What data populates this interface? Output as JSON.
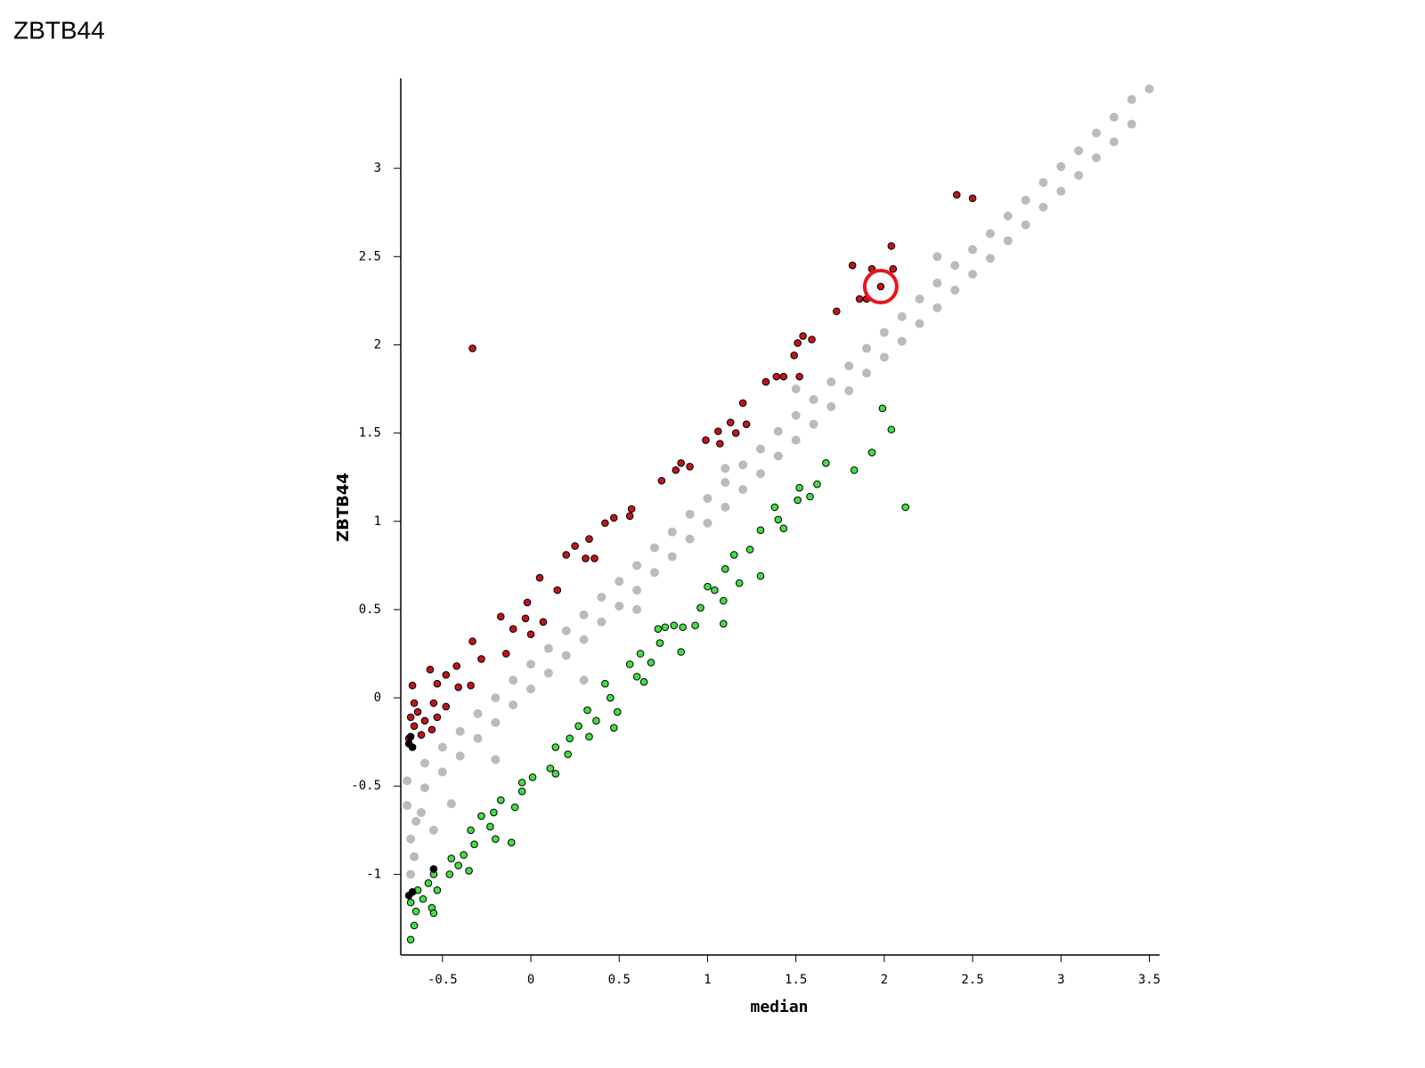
{
  "chart_data": {
    "type": "scatter",
    "title": "ZBTB44",
    "xlabel": "median",
    "ylabel": "ZBTB44",
    "xlim": [
      -0.736,
      3.558
    ],
    "ylim": [
      -1.457,
      3.51
    ],
    "xticks": [
      -0.5,
      0,
      0.5,
      1,
      1.5,
      2,
      2.5,
      3,
      3.5
    ],
    "yticks": [
      -1,
      -0.5,
      0,
      0.5,
      1,
      1.5,
      2,
      2.5,
      3
    ],
    "series": [
      {
        "color": "#bbbbbb",
        "edgecolor": "none",
        "x": [
          -0.7,
          -0.7,
          -0.6,
          -0.6,
          -0.5,
          -0.5,
          -0.4,
          -0.4,
          -0.3,
          -0.3,
          -0.2,
          -0.2,
          -0.1,
          -0.1,
          0,
          0,
          0.1,
          0.1,
          0.2,
          0.2,
          0.3,
          0.3,
          0.4,
          0.4,
          0.5,
          0.5,
          0.6,
          0.6,
          0.7,
          0.7,
          0.8,
          0.8,
          0.9,
          0.9,
          1.0,
          1.0,
          1.1,
          1.1,
          1.2,
          1.2,
          1.3,
          1.3,
          1.4,
          1.4,
          1.5,
          1.5,
          1.6,
          1.6,
          1.7,
          1.7,
          1.8,
          1.8,
          1.9,
          1.9,
          2.0,
          2.0,
          2.1,
          2.1,
          2.2,
          2.2,
          2.3,
          2.3,
          2.4,
          2.4,
          2.5,
          2.5,
          2.6,
          2.6,
          2.7,
          2.7,
          2.8,
          2.8,
          2.9,
          2.9,
          3.0,
          3.0,
          3.1,
          3.1,
          3.2,
          3.2,
          3.3,
          3.3,
          3.4,
          3.4,
          3.5,
          -0.68,
          -0.68,
          -0.66,
          -0.65,
          -0.62,
          -0.55,
          -0.45,
          -0.2,
          0.3,
          0.6,
          1.1,
          1.5,
          2.3
        ],
        "y": [
          -0.47,
          -0.61,
          -0.37,
          -0.51,
          -0.28,
          -0.42,
          -0.19,
          -0.33,
          -0.09,
          -0.23,
          0.0,
          -0.14,
          0.1,
          -0.04,
          0.19,
          0.05,
          0.28,
          0.14,
          0.38,
          0.24,
          0.47,
          0.33,
          0.57,
          0.43,
          0.66,
          0.52,
          0.75,
          0.61,
          0.85,
          0.71,
          0.94,
          0.8,
          1.04,
          0.9,
          1.13,
          0.99,
          1.22,
          1.08,
          1.32,
          1.18,
          1.41,
          1.27,
          1.51,
          1.37,
          1.6,
          1.46,
          1.69,
          1.55,
          1.79,
          1.65,
          1.88,
          1.74,
          1.98,
          1.84,
          2.07,
          1.93,
          2.16,
          2.02,
          2.26,
          2.12,
          2.35,
          2.21,
          2.45,
          2.31,
          2.54,
          2.4,
          2.63,
          2.49,
          2.73,
          2.59,
          2.82,
          2.68,
          2.92,
          2.78,
          3.01,
          2.87,
          3.1,
          2.96,
          3.2,
          3.06,
          3.29,
          3.15,
          3.39,
          3.25,
          3.45,
          -0.8,
          -1.0,
          -0.9,
          -0.7,
          -0.65,
          -0.75,
          -0.6,
          -0.35,
          0.1,
          0.5,
          1.3,
          1.75,
          2.5
        ]
      },
      {
        "color": "#c0141c",
        "edgecolor": "#000000",
        "x": [
          2.41,
          2.5,
          2.04,
          1.82,
          1.93,
          2.05,
          1.98,
          1.86,
          1.9,
          1.73,
          -0.33,
          1.54,
          1.59,
          1.51,
          1.49,
          1.39,
          1.43,
          1.33,
          1.52,
          1.2,
          1.13,
          1.22,
          1.06,
          0.99,
          1.16,
          1.07,
          0.85,
          0.9,
          0.82,
          0.74,
          0.57,
          0.56,
          0.47,
          0.42,
          0.33,
          0.25,
          0.36,
          0.31,
          0.2,
          0.05,
          0.15,
          -0.02,
          -0.17,
          -0.03,
          0.07,
          -0.1,
          0.0,
          -0.33,
          -0.28,
          -0.14,
          -0.42,
          -0.57,
          -0.48,
          -0.53,
          -0.41,
          -0.34,
          -0.67,
          -0.55,
          -0.48,
          -0.64,
          -0.6,
          -0.68,
          -0.66,
          -0.56,
          -0.62,
          -0.69,
          -0.53,
          -0.66
        ],
        "y": [
          2.85,
          2.83,
          2.56,
          2.45,
          2.43,
          2.43,
          2.33,
          2.26,
          2.26,
          2.19,
          1.98,
          2.05,
          2.03,
          2.01,
          1.94,
          1.82,
          1.82,
          1.79,
          1.82,
          1.67,
          1.56,
          1.55,
          1.51,
          1.46,
          1.5,
          1.44,
          1.33,
          1.31,
          1.29,
          1.23,
          1.07,
          1.03,
          1.02,
          0.99,
          0.9,
          0.86,
          0.79,
          0.79,
          0.81,
          0.68,
          0.61,
          0.54,
          0.46,
          0.45,
          0.43,
          0.39,
          0.36,
          0.32,
          0.22,
          0.25,
          0.18,
          0.16,
          0.13,
          0.08,
          0.06,
          0.07,
          0.07,
          -0.03,
          -0.05,
          -0.08,
          -0.13,
          -0.11,
          -0.16,
          -0.18,
          -0.21,
          -0.23,
          -0.11,
          -0.03
        ]
      },
      {
        "color": "#44dd44",
        "edgecolor": "#000000",
        "x": [
          2.12,
          1.99,
          2.04,
          1.93,
          1.83,
          1.67,
          1.62,
          1.52,
          1.58,
          1.51,
          1.38,
          1.4,
          1.43,
          1.3,
          1.24,
          1.15,
          1.1,
          1.3,
          1.18,
          1.0,
          1.04,
          1.09,
          0.96,
          1.09,
          0.93,
          0.81,
          0.76,
          0.72,
          0.86,
          0.73,
          0.85,
          0.62,
          0.68,
          0.56,
          0.6,
          0.64,
          0.42,
          0.45,
          0.49,
          0.32,
          0.37,
          0.47,
          0.27,
          0.22,
          0.33,
          0.14,
          0.21,
          0.11,
          0.01,
          -0.05,
          0.14,
          -0.05,
          -0.17,
          -0.09,
          -0.21,
          -0.28,
          -0.23,
          -0.34,
          -0.11,
          -0.2,
          -0.32,
          -0.38,
          -0.45,
          -0.41,
          -0.35,
          -0.46,
          -0.55,
          -0.58,
          -0.64,
          -0.53,
          -0.61,
          -0.68,
          -0.65,
          -0.56,
          -0.66,
          -0.68,
          -0.55
        ],
        "y": [
          1.08,
          1.64,
          1.52,
          1.39,
          1.29,
          1.33,
          1.21,
          1.19,
          1.14,
          1.12,
          1.08,
          1.01,
          0.96,
          0.95,
          0.84,
          0.81,
          0.73,
          0.69,
          0.65,
          0.63,
          0.61,
          0.55,
          0.51,
          0.42,
          0.41,
          0.41,
          0.4,
          0.39,
          0.4,
          0.31,
          0.26,
          0.25,
          0.2,
          0.19,
          0.12,
          0.09,
          0.08,
          0.0,
          -0.08,
          -0.07,
          -0.13,
          -0.17,
          -0.16,
          -0.23,
          -0.22,
          -0.28,
          -0.32,
          -0.4,
          -0.45,
          -0.48,
          -0.43,
          -0.53,
          -0.58,
          -0.62,
          -0.65,
          -0.67,
          -0.73,
          -0.75,
          -0.82,
          -0.8,
          -0.83,
          -0.89,
          -0.91,
          -0.95,
          -0.98,
          -1.0,
          -1.0,
          -1.05,
          -1.09,
          -1.09,
          -1.14,
          -1.16,
          -1.21,
          -1.19,
          -1.29,
          -1.37,
          -1.22
        ]
      },
      {
        "color": "#000000",
        "edgecolor": "#000000",
        "x": [
          -0.69,
          -0.68,
          -0.67,
          -0.69,
          -0.67,
          -0.55
        ],
        "y": [
          -0.26,
          -0.22,
          -0.28,
          -1.12,
          -1.1,
          -0.97
        ]
      }
    ],
    "highlight": {
      "x": 1.98,
      "y": 2.33,
      "color": "#e8141c"
    }
  }
}
